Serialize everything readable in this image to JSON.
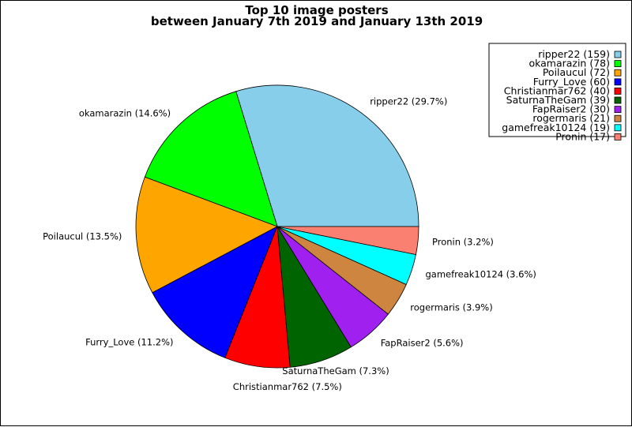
{
  "chart_data": {
    "type": "pie",
    "title_lines": [
      "Top 10 image posters",
      "between January 7th 2019 and January 13th 2019"
    ],
    "slices": [
      {
        "name": "ripper22",
        "value": 159,
        "percent_label": "ripper22 (29.7%)",
        "legend_label": "ripper22 (159)",
        "color": "#87CEEB"
      },
      {
        "name": "okamarazin",
        "value": 78,
        "percent_label": "okamarazin (14.6%)",
        "legend_label": "okamarazin (78)",
        "color": "#00FF00"
      },
      {
        "name": "Poilaucul",
        "value": 72,
        "percent_label": "Poilaucul (13.5%)",
        "legend_label": "Poilaucul (72)",
        "color": "#FFA500"
      },
      {
        "name": "Furry_Love",
        "value": 60,
        "percent_label": "Furry_Love (11.2%)",
        "legend_label": "Furry_Love (60)",
        "color": "#0000FF"
      },
      {
        "name": "Christianmar762",
        "value": 40,
        "percent_label": "Christianmar762 (7.5%)",
        "legend_label": "Christianmar762 (40)",
        "color": "#FF0000"
      },
      {
        "name": "SaturnaTheGam",
        "value": 39,
        "percent_label": "SaturnaTheGam (7.3%)",
        "legend_label": "SaturnaTheGam (39)",
        "color": "#006400"
      },
      {
        "name": "FapRaiser2",
        "value": 30,
        "percent_label": "FapRaiser2 (5.6%)",
        "legend_label": "FapRaiser2 (30)",
        "color": "#A020F0"
      },
      {
        "name": "rogermaris",
        "value": 21,
        "percent_label": "rogermaris (3.9%)",
        "legend_label": "rogermaris (21)",
        "color": "#CD853F"
      },
      {
        "name": "gamefreak10124",
        "value": 19,
        "percent_label": "gamefreak10124 (3.6%)",
        "legend_label": "gamefreak10124 (19)",
        "color": "#00FFFF"
      },
      {
        "name": "Pronin",
        "value": 17,
        "percent_label": "Pronin (3.2%)",
        "legend_label": "Pronin (17)",
        "color": "#FA8072"
      }
    ],
    "legend_position": "top-right"
  }
}
